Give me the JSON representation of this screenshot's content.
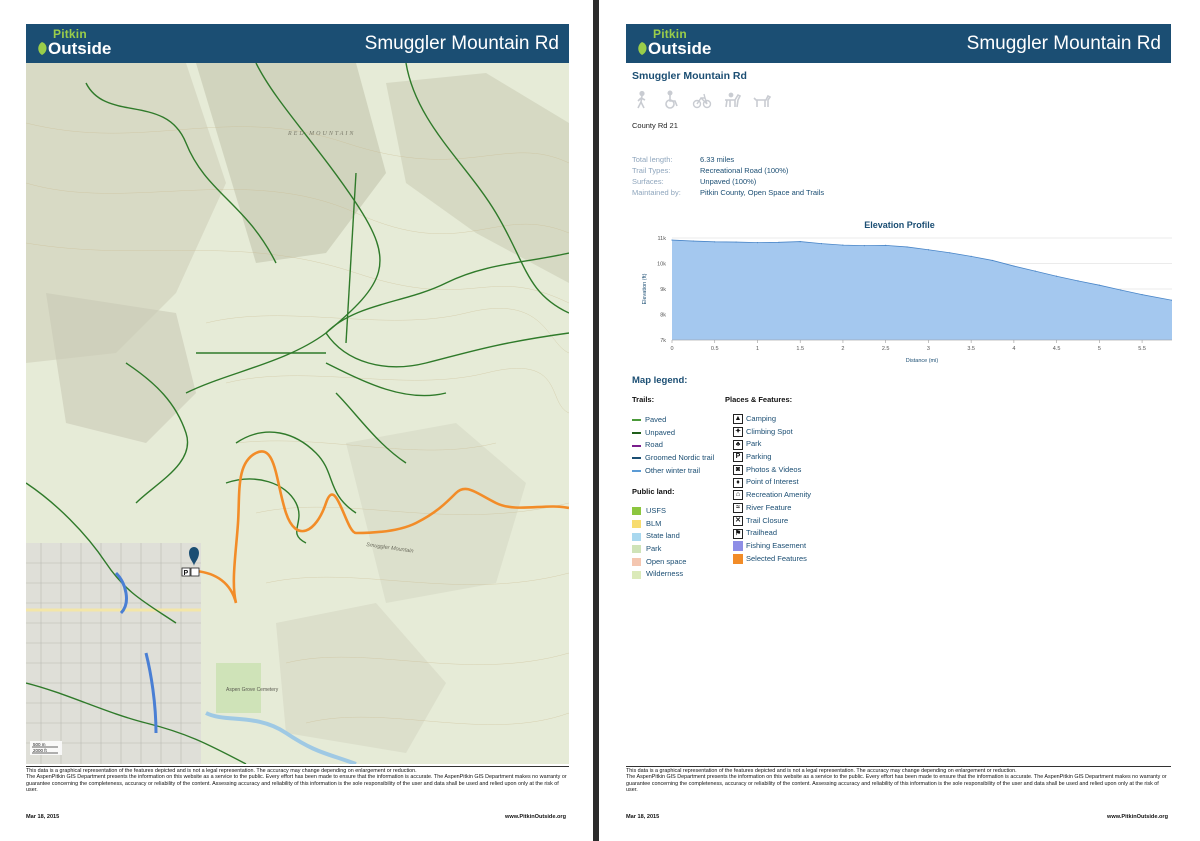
{
  "header": {
    "logo_top": "Pitkin",
    "logo_bottom": "Outside",
    "title": "Smuggler Mountain Rd"
  },
  "map": {
    "labels": {
      "red_mountain": "RED MOUNTAIN",
      "road_label": "Smuggler Mountain",
      "cemetery": "Aspen\nGrove\nCemetery"
    },
    "scale": [
      "500 m",
      "2000 ft"
    ]
  },
  "details": {
    "name": "Smuggler Mountain Rd",
    "use_icons": [
      "hiker-icon",
      "accessible-icon",
      "bike-icon",
      "horse-icon",
      "dog-icon"
    ],
    "alt_name": "County Rd 21",
    "facts": [
      {
        "label": "Total length:",
        "value": "6.33 miles"
      },
      {
        "label": "Trail Types:",
        "value": "Recreational Road (100%)"
      },
      {
        "label": "Surfaces:",
        "value": "Unpaved (100%)"
      },
      {
        "label": "Maintained by:",
        "value": "Pitkin County, Open Space and Trails"
      }
    ]
  },
  "chart_data": {
    "type": "area",
    "title": "Elevation Profile",
    "xlabel": "Distance (mi)",
    "ylabel": "Elevation (ft)",
    "xlim": [
      0,
      5.85
    ],
    "ylim": [
      7000,
      11000
    ],
    "x_ticks": [
      "0",
      "0.5",
      "1",
      "1.5",
      "2",
      "2.5",
      "3",
      "3.5",
      "4",
      "4.5",
      "5",
      "5.5"
    ],
    "y_ticks": [
      "7k",
      "8k",
      "9k",
      "10k",
      "11k"
    ],
    "grid": true,
    "color": "#a4c8ef",
    "line_color": "#4a86c8",
    "x": [
      0,
      0.25,
      0.5,
      0.75,
      1.0,
      1.25,
      1.5,
      1.75,
      2.0,
      2.25,
      2.5,
      2.75,
      3.0,
      3.25,
      3.5,
      3.75,
      4.0,
      4.25,
      4.5,
      4.75,
      5.0,
      5.25,
      5.5,
      5.85
    ],
    "values": [
      10920,
      10880,
      10850,
      10840,
      10820,
      10830,
      10860,
      10780,
      10720,
      10700,
      10710,
      10650,
      10540,
      10420,
      10280,
      10120,
      9900,
      9700,
      9500,
      9320,
      9150,
      8960,
      8780,
      8560
    ]
  },
  "legend": {
    "title": "Map legend:",
    "trails_head": "Trails:",
    "trails": [
      {
        "label": "Paved",
        "color": "#4b9a3a"
      },
      {
        "label": "Unpaved",
        "color": "#1f5e1a"
      },
      {
        "label": "Road",
        "color": "#7a1e8c"
      },
      {
        "label": "Groomed Nordic trail",
        "color": "#1b4e73"
      },
      {
        "label": "Other winter trail",
        "color": "#5b9bd5"
      }
    ],
    "public_land_head": "Public land:",
    "public_land": [
      {
        "label": "USFS",
        "color": "#8cc63f"
      },
      {
        "label": "BLM",
        "color": "#f7dc6f"
      },
      {
        "label": "State land",
        "color": "#a9d8ef"
      },
      {
        "label": "Park",
        "color": "#cfe3b8"
      },
      {
        "label": "Open space",
        "color": "#f4c6b0"
      },
      {
        "label": "Wilderness",
        "color": "#dbeab9"
      }
    ],
    "features_head": "Places & Features:",
    "features": [
      {
        "label": "Camping",
        "icon": "camping-icon",
        "glyph": "▲",
        "fill": ""
      },
      {
        "label": "Climbing Spot",
        "icon": "climbing-icon",
        "glyph": "✦",
        "fill": ""
      },
      {
        "label": "Park",
        "icon": "park-icon",
        "glyph": "♣",
        "fill": ""
      },
      {
        "label": "Parking",
        "icon": "parking-icon",
        "glyph": "P",
        "fill": ""
      },
      {
        "label": "Photos & Videos",
        "icon": "camera-icon",
        "glyph": "◙",
        "fill": ""
      },
      {
        "label": "Point of Interest",
        "icon": "poi-icon",
        "glyph": "♦",
        "fill": ""
      },
      {
        "label": "Recreation Amenity",
        "icon": "amenity-icon",
        "glyph": "⌂",
        "fill": ""
      },
      {
        "label": "River Feature",
        "icon": "river-icon",
        "glyph": "≈",
        "fill": ""
      },
      {
        "label": "Trail Closure",
        "icon": "closure-icon",
        "glyph": "✕",
        "fill": ""
      },
      {
        "label": "Trailhead",
        "icon": "trailhead-icon",
        "glyph": "⚑",
        "fill": ""
      },
      {
        "label": "Fishing Easement",
        "icon": "fishing-easement-icon",
        "glyph": "",
        "fill": "#8e8ee6"
      },
      {
        "label": "Selected Features",
        "icon": "selected-features-icon",
        "glyph": "",
        "fill": "#f28c28"
      }
    ]
  },
  "footer": {
    "disclaimer_1": "This data is a graphical representation of the features depicted and is not a legal representation. The accuracy may change depending on enlargement or reduction.",
    "disclaimer_2": "The AspenPitkin GIS Department presents the information on this website as a service to the public. Every effort has been made to ensure that the information is accurate. The AspenPitkin GIS Department makes no warranty or guarantee concerning the completeness, accuracy or reliability of the content. Assessing accuracy and reliability of this information is the sole responsibility of the user and data shall be used and relied upon only at the risk of user.",
    "date": "Mar 18, 2015",
    "url": "www.PitkinOutside.org"
  }
}
